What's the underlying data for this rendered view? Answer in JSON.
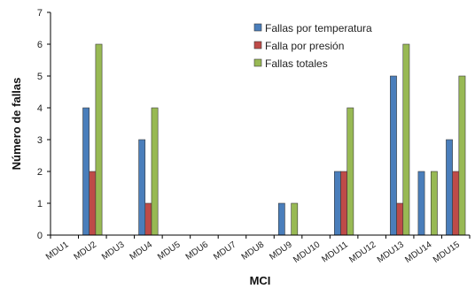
{
  "chart_data": {
    "type": "bar",
    "xlabel": "MCI",
    "ylabel": "Número de fallas",
    "ylim": [
      0,
      7
    ],
    "yticks": [
      0,
      1,
      2,
      3,
      4,
      5,
      6,
      7
    ],
    "grid": false,
    "legend_position": "top-right",
    "categories": [
      "MDU1",
      "MDU2",
      "MDU3",
      "MDU4",
      "MDU5",
      "MDU6",
      "MDU7",
      "MDU8",
      "MDU9",
      "MDU10",
      "MDU11",
      "MDU12",
      "MDU13",
      "MDU14",
      "MDU15"
    ],
    "series": [
      {
        "name": "Fallas por temperatura",
        "color": "#4a7ebb",
        "values": [
          0,
          4,
          0,
          3,
          0,
          0,
          0,
          0,
          1,
          0,
          2,
          0,
          5,
          2,
          3
        ]
      },
      {
        "name": "Falla por presión",
        "color": "#be4b48",
        "values": [
          0,
          2,
          0,
          1,
          0,
          0,
          0,
          0,
          0,
          0,
          2,
          0,
          1,
          0,
          2
        ]
      },
      {
        "name": "Fallas totales",
        "color": "#98b954",
        "values": [
          0,
          6,
          0,
          4,
          0,
          0,
          0,
          0,
          1,
          0,
          4,
          0,
          6,
          2,
          5
        ]
      }
    ]
  }
}
